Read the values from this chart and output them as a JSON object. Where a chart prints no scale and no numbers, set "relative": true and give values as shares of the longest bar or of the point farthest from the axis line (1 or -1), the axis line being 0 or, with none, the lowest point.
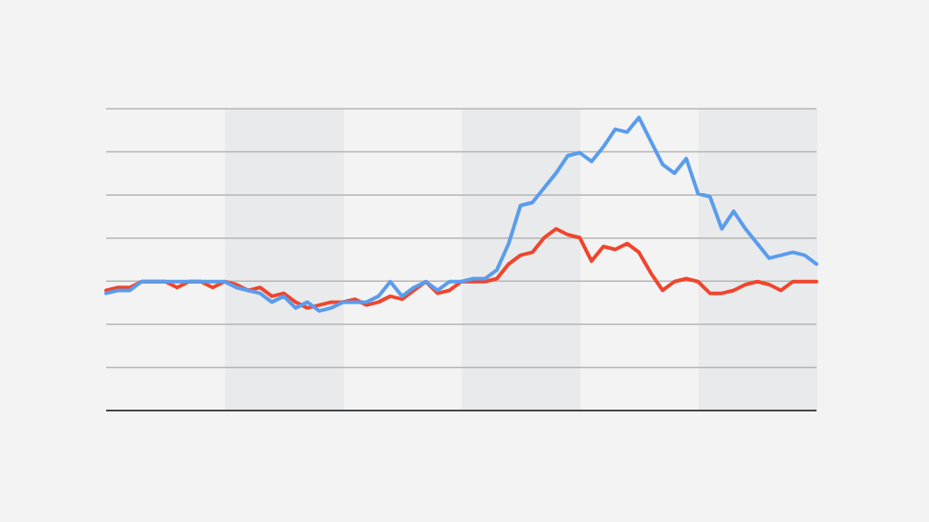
{
  "chart_data": {
    "type": "line",
    "relative": true,
    "grid": "y",
    "marker": "none",
    "line_style": "solid",
    "categories": [
      null,
      null,
      null,
      null,
      null,
      null,
      null,
      null,
      null,
      null,
      null,
      null,
      null,
      null,
      null,
      null,
      null,
      null,
      null,
      null,
      null,
      null,
      null,
      null,
      null,
      null,
      null,
      null,
      null,
      null,
      null,
      null,
      null,
      null,
      null,
      null,
      null,
      null,
      null,
      null,
      null,
      null,
      null,
      null,
      null,
      null,
      null,
      null,
      null,
      null,
      null,
      null,
      null,
      null,
      null,
      null,
      null,
      null,
      null,
      null,
      null
    ],
    "series": [
      {
        "color": "#5a9cec",
        "values": [
          0.4,
          0.41,
          0.41,
          0.44,
          0.44,
          0.44,
          0.44,
          0.44,
          0.44,
          0.44,
          0.44,
          0.42,
          0.41,
          0.4,
          0.37,
          0.39,
          0.35,
          0.37,
          0.34,
          0.35,
          0.37,
          0.37,
          0.37,
          0.39,
          0.44,
          0.39,
          0.42,
          0.44,
          0.41,
          0.44,
          0.44,
          0.45,
          0.45,
          0.48,
          0.57,
          0.7,
          0.71,
          0.76,
          0.81,
          0.87,
          0.88,
          0.85,
          0.9,
          0.96,
          0.95,
          1,
          0.92,
          0.84,
          0.81,
          0.86,
          0.74,
          0.73,
          0.62,
          0.68,
          0.62,
          0.57,
          0.52,
          0.53,
          0.54,
          0.53,
          0.5
        ]
      },
      {
        "color": "#f0452d",
        "values": [
          0.41,
          0.42,
          0.42,
          0.44,
          null,
          0.44,
          0.42,
          0.44,
          0.44,
          0.42,
          0.44,
          0.43,
          0.41,
          0.42,
          0.39,
          0.4,
          0.37,
          0.35,
          0.36,
          0.37,
          0.37,
          0.38,
          0.36,
          0.37,
          0.39,
          0.38,
          0.41,
          0.44,
          0.4,
          0.41,
          0.44,
          0.44,
          0.44,
          0.45,
          0.5,
          0.53,
          0.54,
          0.59,
          0.62,
          0.6,
          0.59,
          0.51,
          0.56,
          0.55,
          0.57,
          0.54,
          0.47,
          0.41,
          0.44,
          0.45,
          0.44,
          0.4,
          0.4,
          0.41,
          0.43,
          0.44,
          0.43,
          0.41,
          0.44,
          0.44,
          0.44
        ]
      }
    ]
  }
}
